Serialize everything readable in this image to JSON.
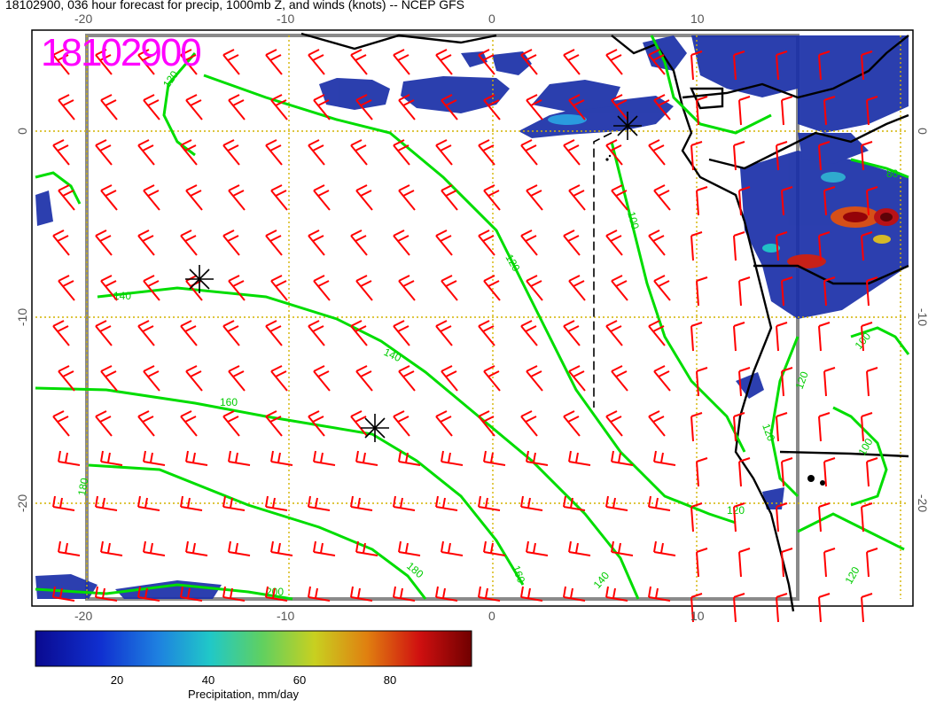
{
  "title": "18102900, 036 hour forecast for precip, 1000mb Z, and winds (knots) -- NCEP GFS",
  "stamp": "18102900",
  "axes": {
    "lon_top": [
      "-20",
      "-10",
      "0",
      "10"
    ],
    "lon_bottom": [
      "-20",
      "-10",
      "0",
      "10"
    ],
    "lat_left": [
      "0",
      "-10",
      "-20"
    ],
    "lat_right": [
      "0",
      "-10",
      "-20"
    ]
  },
  "contour_labels": [
    "120",
    "140",
    "140",
    "160",
    "120",
    "100",
    "120",
    "140",
    "160",
    "180",
    "200",
    "180",
    "100",
    "100",
    "120",
    "80",
    "120",
    "120"
  ],
  "colorbar": {
    "label": "Precipitation, mm/day",
    "ticks": [
      "20",
      "40",
      "60",
      "80"
    ],
    "colors": [
      "#0a0a90",
      "#1030d0",
      "#1e80e0",
      "#20c8c8",
      "#60d060",
      "#c8d020",
      "#e08010",
      "#d01010",
      "#700000"
    ]
  },
  "colors": {
    "wind": "#ff0000",
    "contour": "#00dd00",
    "grid": "#d4b400",
    "stamp": "#ff00ff",
    "precip_base": "#1a2fa8"
  }
}
